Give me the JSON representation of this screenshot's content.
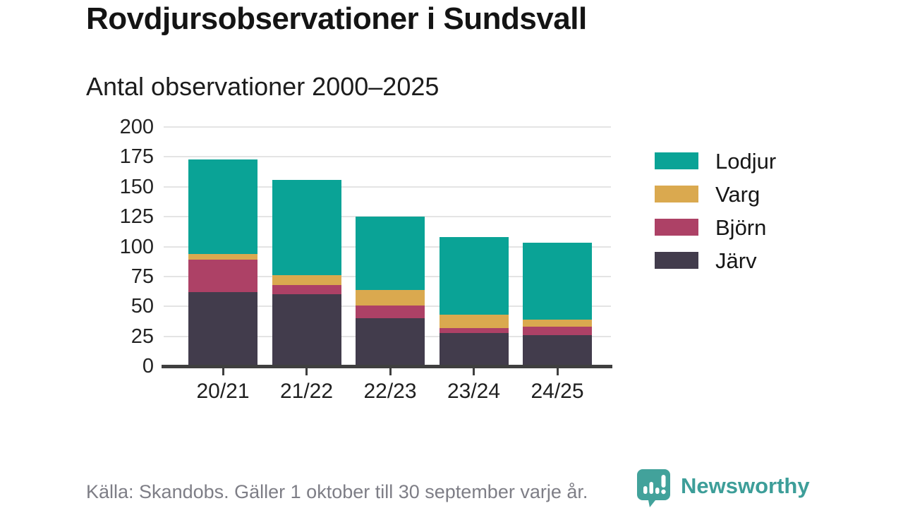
{
  "title": "Rovdjursobservationer i Sundsvall",
  "subtitle": "Antal observationer 2000–2025",
  "footer": {
    "source_note": "Källa: Skandobs. Gäller 1 oktober till 30 september varje år."
  },
  "branding": {
    "name": "Newsworthy",
    "color": "#3d9e99"
  },
  "colors": {
    "lodjur_teal": "#0aa396",
    "varg_gold": "#daa94f",
    "bjorn_maroon": "#ad4166",
    "jarv_dark": "#423c4c",
    "gridline": "#e4e4e4",
    "axis": "#3f3f3f",
    "footer_gray": "#7e7e86"
  },
  "chart_data": {
    "type": "bar",
    "stacked": true,
    "title": "Rovdjursobservationer i Sundsvall",
    "subtitle": "Antal observationer 2000–2025",
    "xlabel": "",
    "ylabel": "Antal observationer",
    "categories": [
      "20/21",
      "21/22",
      "22/23",
      "23/24",
      "24/25"
    ],
    "series": [
      {
        "name": "Järv",
        "color": "#423c4c",
        "values": [
          62,
          60,
          40,
          28,
          26
        ]
      },
      {
        "name": "Björn",
        "color": "#ad4166",
        "values": [
          27,
          8,
          11,
          4,
          7
        ]
      },
      {
        "name": "Varg",
        "color": "#daa94f",
        "values": [
          5,
          8,
          13,
          11,
          6
        ]
      },
      {
        "name": "Lodjur",
        "color": "#0aa396",
        "values": [
          79,
          80,
          61,
          65,
          64
        ]
      }
    ],
    "totals": [
      173,
      156,
      125,
      108,
      103
    ],
    "legend_order": [
      "Lodjur",
      "Varg",
      "Björn",
      "Järv"
    ],
    "legend_position": "right",
    "ylim": [
      0,
      200
    ],
    "yticks": [
      0,
      25,
      50,
      75,
      100,
      125,
      150,
      175,
      200
    ],
    "grid": true
  }
}
